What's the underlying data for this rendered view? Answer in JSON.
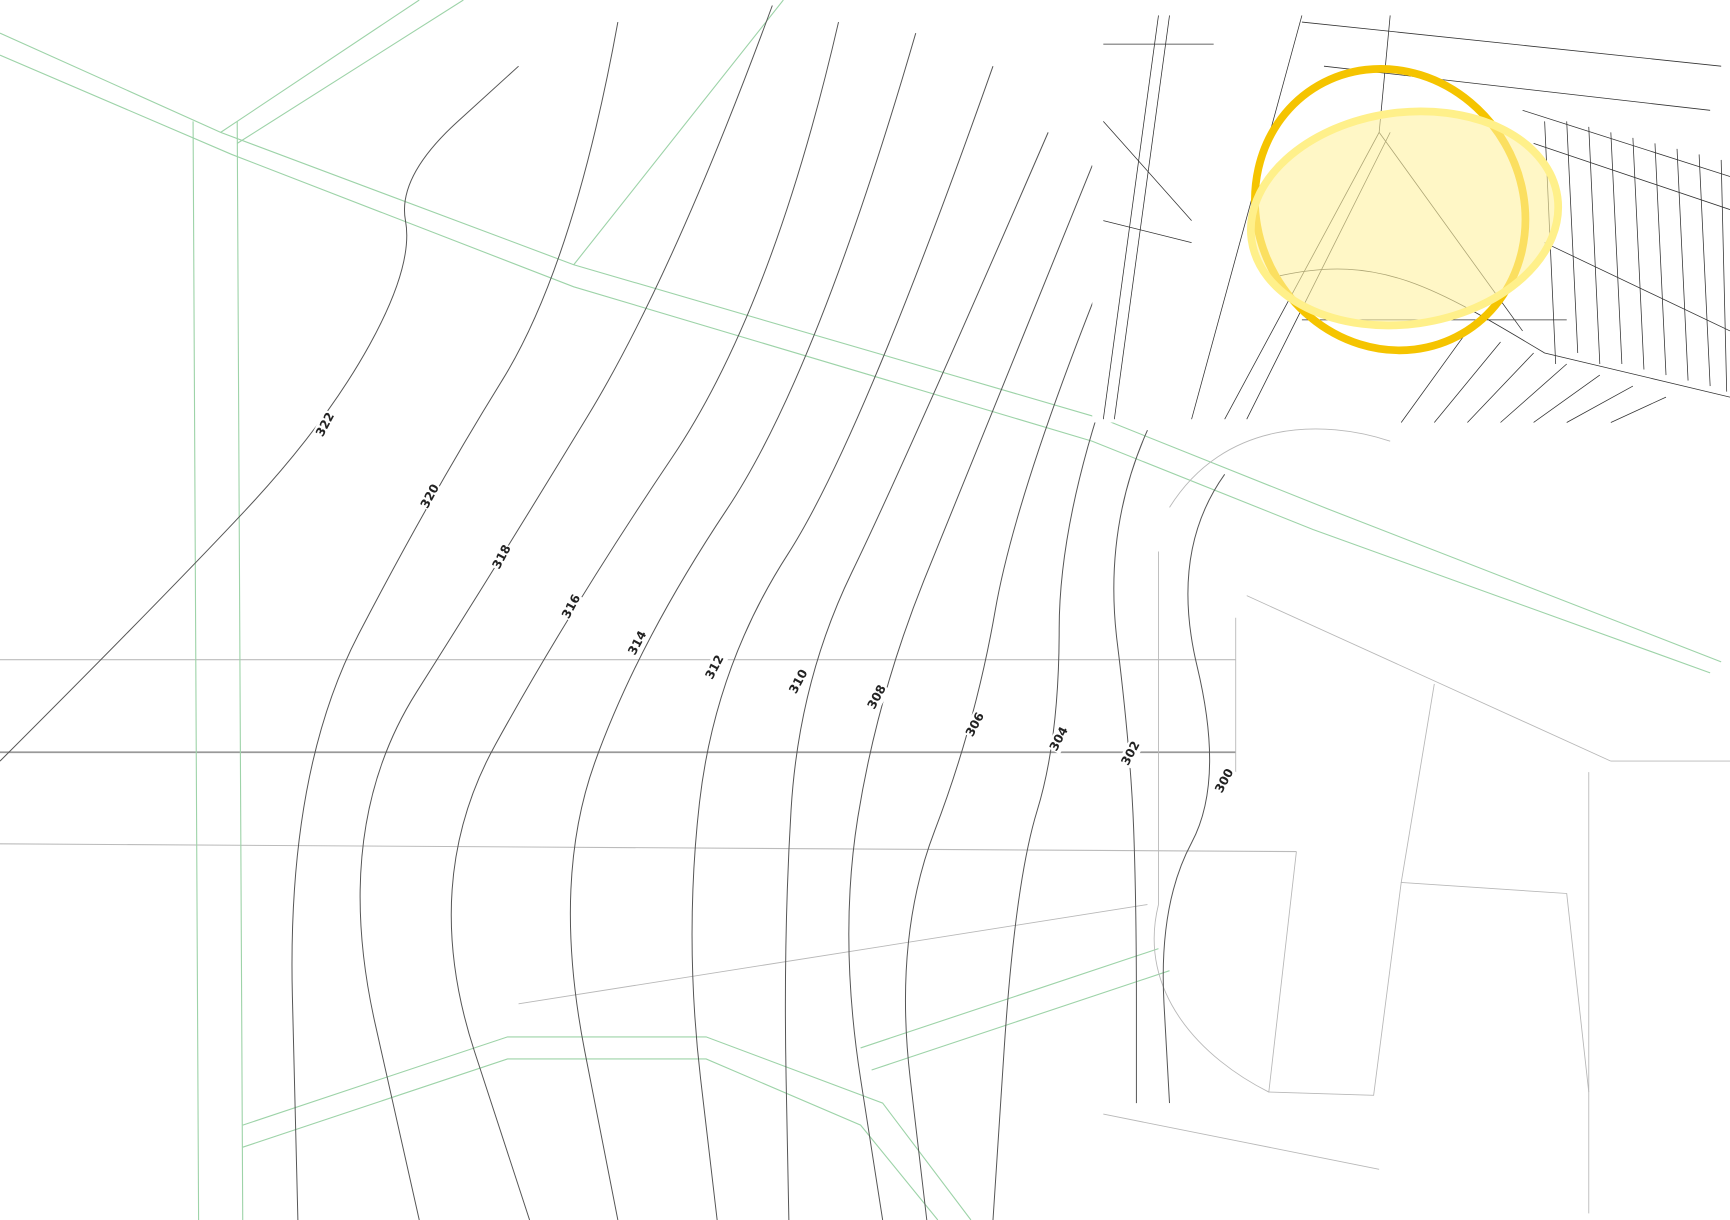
{
  "contours": [
    {
      "label": "322"
    },
    {
      "label": "320"
    },
    {
      "label": "318"
    },
    {
      "label": "316"
    },
    {
      "label": "314"
    },
    {
      "label": "312"
    },
    {
      "label": "310"
    },
    {
      "label": "308"
    },
    {
      "label": "306"
    },
    {
      "label": "304"
    },
    {
      "label": "302"
    },
    {
      "label": "300"
    }
  ]
}
